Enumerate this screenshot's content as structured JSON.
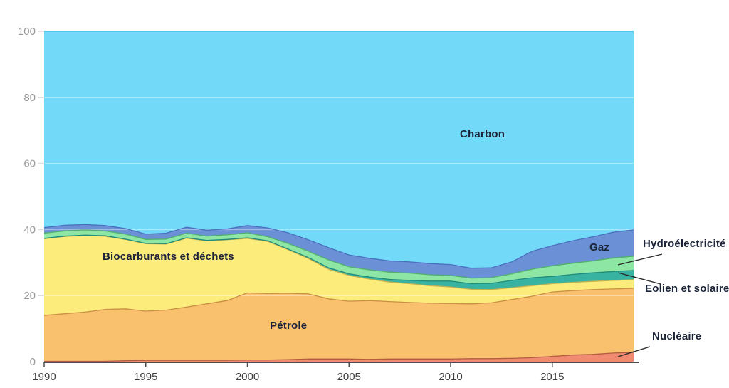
{
  "chart_data": {
    "type": "area",
    "stacked": true,
    "unit": "%",
    "title": "",
    "xlabel": "",
    "ylabel": "",
    "ylim": [
      0,
      100
    ],
    "yticks": [
      0,
      20,
      40,
      60,
      80,
      100
    ],
    "xticks": [
      1990,
      1995,
      2000,
      2005,
      2010,
      2015
    ],
    "grid": "faint white horizontal lines over areas",
    "legend_position": "labels inline and annotated at right",
    "x": [
      1990,
      1991,
      1992,
      1993,
      1994,
      1995,
      1996,
      1997,
      1998,
      1999,
      2000,
      2001,
      2002,
      2003,
      2004,
      2005,
      2006,
      2007,
      2008,
      2009,
      2010,
      2011,
      2012,
      2013,
      2014,
      2015,
      2016,
      2017,
      2018,
      2019
    ],
    "series": [
      {
        "key": "nucleaire",
        "name": "Nucléaire",
        "color": "#F08B72",
        "edge": "#B25B43",
        "values": [
          0.1,
          0.1,
          0.1,
          0.1,
          0.3,
          0.4,
          0.4,
          0.4,
          0.4,
          0.4,
          0.5,
          0.5,
          0.6,
          0.8,
          0.8,
          0.8,
          0.7,
          0.8,
          0.8,
          0.8,
          0.8,
          0.9,
          0.9,
          1.0,
          1.2,
          1.6,
          2.0,
          2.2,
          2.6,
          2.8
        ]
      },
      {
        "key": "petrole",
        "name": "Pétrole",
        "color": "#F9C06E",
        "edge": "#C98F45",
        "values": [
          13.9,
          14.4,
          14.9,
          15.7,
          15.7,
          14.9,
          15.2,
          16.1,
          17.1,
          18.1,
          20.3,
          20.1,
          20.1,
          19.7,
          18.2,
          17.5,
          17.8,
          17.4,
          17.1,
          16.9,
          16.8,
          16.6,
          16.9,
          17.8,
          18.6,
          19.5,
          19.5,
          19.6,
          19.4,
          19.4
        ]
      },
      {
        "key": "biocarburants",
        "name": "Biocarburants et déchets",
        "color": "#FCEC7C",
        "edge": "#BFB254",
        "values": [
          23.2,
          23.4,
          23.2,
          22.2,
          21.0,
          20.4,
          20.0,
          20.9,
          19.1,
          18.4,
          16.5,
          15.8,
          13.2,
          10.7,
          9.0,
          7.8,
          6.5,
          5.9,
          5.7,
          5.3,
          5.0,
          4.4,
          4.0,
          3.6,
          3.2,
          2.5,
          2.5,
          2.5,
          2.6,
          2.6
        ]
      },
      {
        "key": "eolien_solaire",
        "name": "Eolien et solaire",
        "color": "#38B3A2",
        "edge": "#208B7B",
        "values": [
          0.1,
          0.1,
          0.1,
          0.1,
          0.1,
          0.1,
          0.1,
          0.1,
          0.1,
          0.1,
          0.2,
          0.2,
          0.2,
          0.3,
          0.4,
          0.5,
          0.6,
          0.8,
          1.0,
          1.4,
          1.8,
          1.7,
          1.9,
          2.2,
          2.4,
          2.2,
          2.4,
          2.6,
          2.7,
          2.8
        ]
      },
      {
        "key": "hydroelectricite",
        "name": "Hydroélectricité",
        "color": "#8EE6A4",
        "edge": "#4FB06C",
        "values": [
          1.6,
          1.6,
          1.6,
          1.5,
          1.5,
          1.2,
          1.4,
          1.4,
          1.3,
          1.4,
          1.5,
          1.2,
          1.7,
          1.9,
          2.4,
          2.1,
          2.2,
          2.2,
          2.2,
          1.9,
          1.7,
          1.7,
          1.7,
          2.0,
          2.6,
          3.2,
          3.4,
          3.6,
          4.1,
          4.3
        ]
      },
      {
        "key": "gaz",
        "name": "Gaz",
        "color": "#6C90D6",
        "edge": "#4A6FBE",
        "values": [
          1.7,
          1.7,
          1.6,
          1.6,
          1.7,
          1.6,
          1.8,
          1.8,
          1.8,
          1.8,
          2.2,
          2.7,
          3.2,
          3.5,
          3.7,
          3.6,
          3.5,
          3.4,
          3.4,
          3.4,
          3.3,
          3.0,
          3.0,
          3.6,
          5.4,
          6.1,
          6.8,
          7.3,
          7.8,
          8.0
        ]
      },
      {
        "key": "charbon",
        "name": "Charbon",
        "color": "#72DAF8",
        "edge": "#3FBFE6",
        "values": [
          59.4,
          58.7,
          58.5,
          58.8,
          59.7,
          61.4,
          61.1,
          59.3,
          60.2,
          59.8,
          58.8,
          59.5,
          61.0,
          63.1,
          65.5,
          67.7,
          68.7,
          69.5,
          69.8,
          70.3,
          70.6,
          71.7,
          71.6,
          69.8,
          66.6,
          64.9,
          63.4,
          62.2,
          60.8,
          60.1
        ]
      }
    ],
    "area_labels": {
      "biocarburants": "Biocarburants et déchets",
      "petrole": "Pétrole",
      "charbon": "Charbon",
      "gaz": "Gaz"
    },
    "annotations": {
      "hydro": {
        "text": "Hydroélectricité"
      },
      "eolien": {
        "text": "Eolien et solaire"
      },
      "nucleaire": {
        "text": "Nucléaire"
      }
    },
    "colors": {
      "axis_line": "#4d4d4d",
      "x_tick_label": "#3d3d3d",
      "y_tick_label": "#9b9b9b",
      "y_tick_dash": "#dcdcdc",
      "gridline": "rgba(255,255,255,0.38)",
      "label_text": "#1b2438",
      "annotation_line": "#2b2b2b"
    }
  }
}
